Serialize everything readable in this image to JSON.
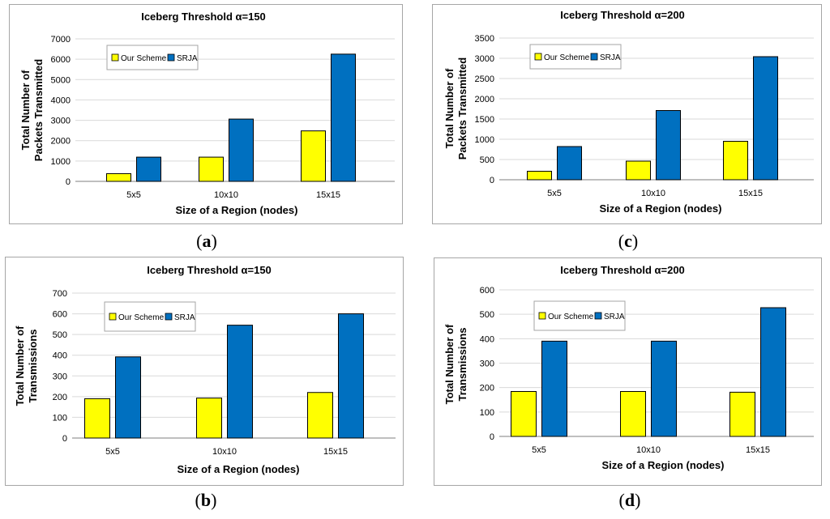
{
  "panels": [
    {
      "id": "a",
      "label_open": "(",
      "label_letter": "a",
      "label_close": ")"
    },
    {
      "id": "c",
      "label_open": "(",
      "label_letter": "c",
      "label_close": ")"
    },
    {
      "id": "b",
      "label_open": "(",
      "label_letter": "b",
      "label_close": ")"
    },
    {
      "id": "d",
      "label_open": "(",
      "label_letter": "d",
      "label_close": ")"
    }
  ],
  "colors": {
    "our_scheme": "#FFFF00",
    "srja": "#0070C0",
    "grid": "#D9D9D9",
    "axis": "#7F7F7F"
  },
  "chart_data": [
    {
      "type": "bar",
      "title": "Iceberg Threshold α=150",
      "xlabel": "Size of a Region (nodes)",
      "ylabel": [
        "Total Number of",
        "Packets Transmitted"
      ],
      "categories": [
        "5x5",
        "10x10",
        "15x15"
      ],
      "ylim": [
        0,
        7000
      ],
      "ticks": [
        0,
        1000,
        2000,
        3000,
        4000,
        5000,
        6000,
        7000
      ],
      "series": [
        {
          "name": "Our Scheme",
          "values": [
            380,
            1190,
            2480
          ]
        },
        {
          "name": "SRJA",
          "values": [
            1190,
            3060,
            6250
          ]
        }
      ],
      "legend": "top-left"
    },
    {
      "type": "bar",
      "title": "Iceberg Threshold α=200",
      "xlabel": "Size of a Region (nodes)",
      "ylabel": [
        "Total Number of",
        "Packets Transmitted"
      ],
      "categories": [
        "5x5",
        "10x10",
        "15x15"
      ],
      "ylim": [
        0,
        3500
      ],
      "ticks": [
        0,
        500,
        1000,
        1500,
        2000,
        2500,
        3000,
        3500
      ],
      "series": [
        {
          "name": "Our Scheme",
          "values": [
            210,
            460,
            950
          ]
        },
        {
          "name": "SRJA",
          "values": [
            820,
            1710,
            3040
          ]
        }
      ],
      "legend": "top-left"
    },
    {
      "type": "bar",
      "title": "Iceberg Threshold α=150",
      "xlabel": "Size of a Region (nodes)",
      "ylabel": [
        "Total Number of",
        "Transmissions"
      ],
      "categories": [
        "5x5",
        "10x10",
        "15x15"
      ],
      "ylim": [
        0,
        700
      ],
      "ticks": [
        0,
        100,
        200,
        300,
        400,
        500,
        600,
        700
      ],
      "series": [
        {
          "name": "Our Scheme",
          "values": [
            190,
            193,
            220
          ]
        },
        {
          "name": "SRJA",
          "values": [
            392,
            545,
            600
          ]
        }
      ],
      "legend": "top-left"
    },
    {
      "type": "bar",
      "title": "Iceberg Threshold α=200",
      "xlabel": "Size of a Region (nodes)",
      "ylabel": [
        "Total Number of",
        "Transmissions"
      ],
      "categories": [
        "5x5",
        "10x10",
        "15x15"
      ],
      "ylim": [
        0,
        600
      ],
      "ticks": [
        0,
        100,
        200,
        300,
        400,
        500,
        600
      ],
      "series": [
        {
          "name": "Our Scheme",
          "values": [
            184,
            184,
            181
          ]
        },
        {
          "name": "SRJA",
          "values": [
            390,
            390,
            527
          ]
        }
      ],
      "legend": "top-left"
    }
  ]
}
